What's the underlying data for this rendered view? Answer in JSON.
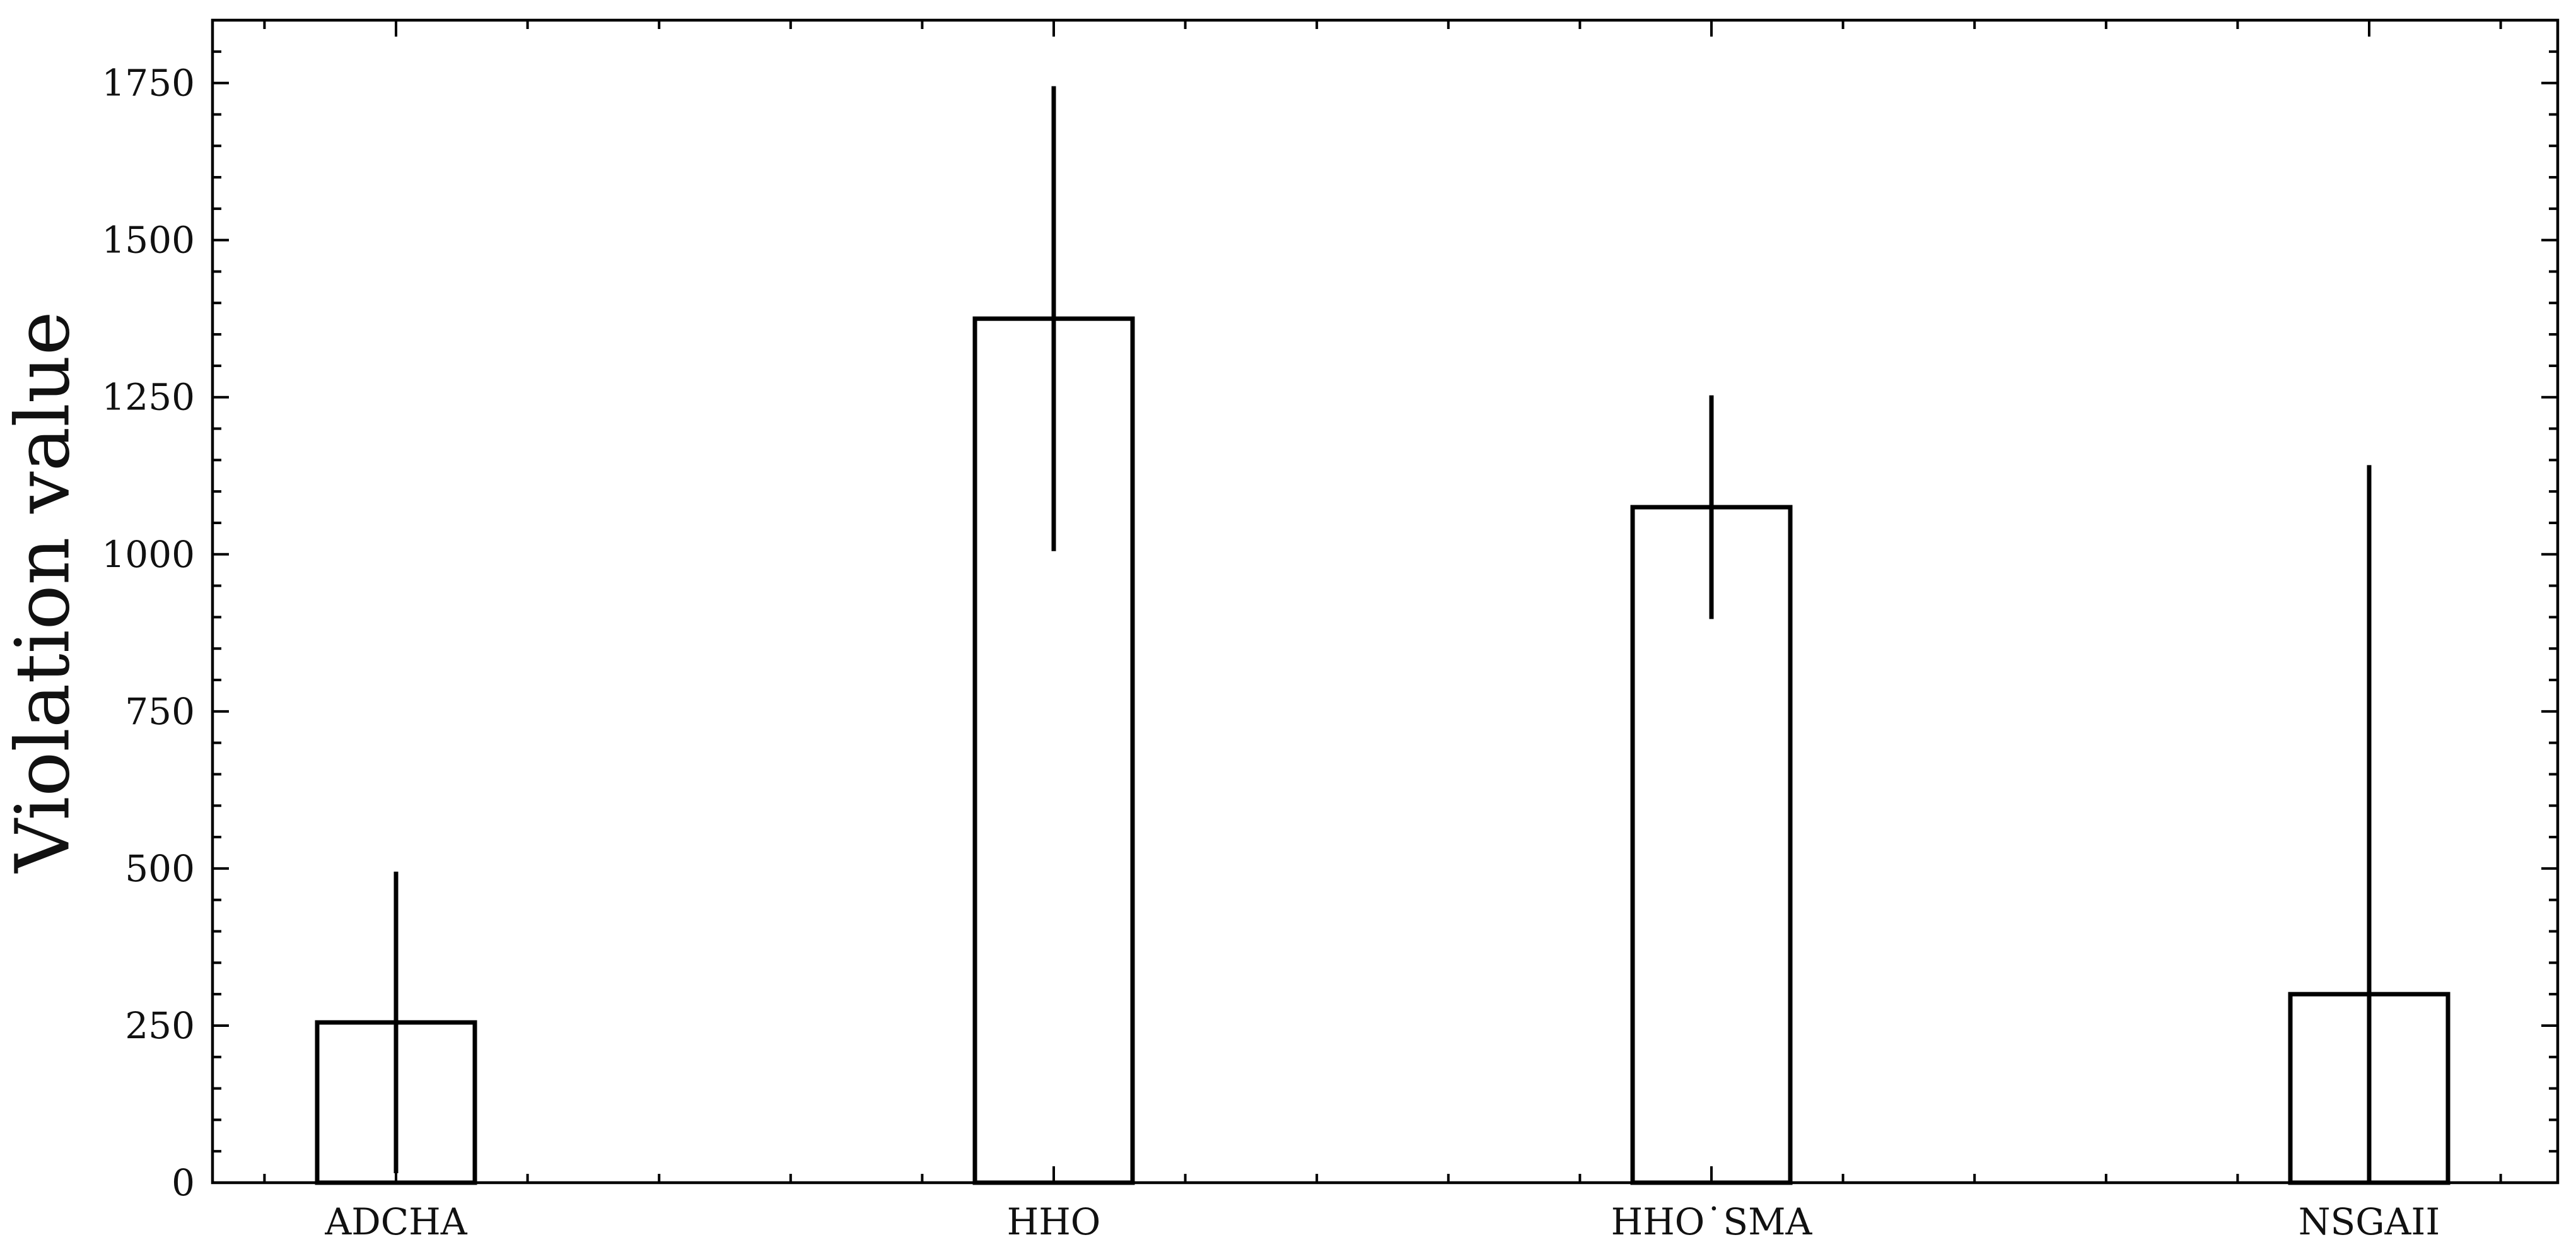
{
  "chart_data": {
    "type": "bar",
    "categories": [
      "ADCHA",
      "HHO",
      "HHO˙SMA",
      "NSGAII"
    ],
    "values": [
      255,
      1375,
      1075,
      300
    ],
    "error": [
      240,
      370,
      178,
      842
    ],
    "xlabel": "",
    "ylabel": "Violation value",
    "ylim": [
      0,
      1850
    ],
    "yticks": [
      0,
      250,
      500,
      750,
      1000,
      1250,
      1500,
      1750
    ],
    "ytick_labels": [
      "0",
      "250",
      "500",
      "750",
      "1000",
      "1250",
      "1500",
      "1750"
    ],
    "grid": false,
    "bar_fill": "none",
    "bar_edge_color": "#000000",
    "error_color": "#000000"
  }
}
